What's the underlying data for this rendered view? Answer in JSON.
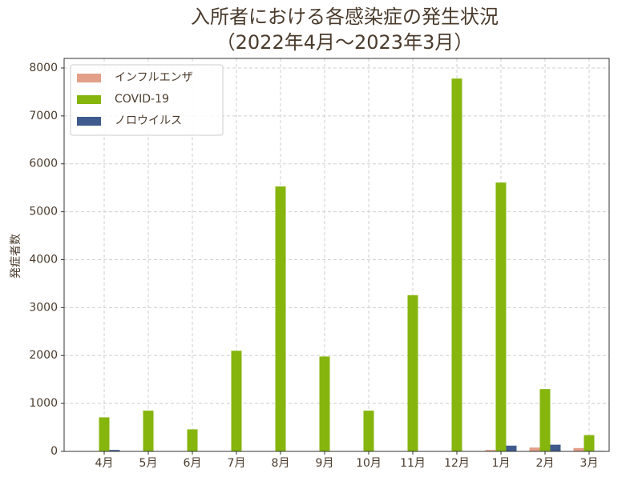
{
  "chart_data": {
    "type": "bar",
    "title": "入所者における各感染症の発生状況",
    "subtitle": "（2022年4月～2023年3月）",
    "y_label": "発症者数",
    "categories": [
      "4月",
      "5月",
      "6月",
      "7月",
      "8月",
      "9月",
      "10月",
      "11月",
      "12月",
      "1月",
      "2月",
      "3月"
    ],
    "series": [
      {
        "name": "インフルエンザ",
        "color": "#e3a088",
        "values": [
          0,
          0,
          0,
          0,
          0,
          0,
          0,
          0,
          0,
          30,
          80,
          70
        ]
      },
      {
        "name": "COVID-19",
        "color": "#86b50e",
        "values": [
          710,
          850,
          460,
          2100,
          5530,
          1980,
          850,
          3260,
          7780,
          5610,
          1300,
          340
        ]
      },
      {
        "name": "ノロウイルス",
        "color": "#3f5a8c",
        "values": [
          30,
          0,
          0,
          0,
          0,
          0,
          0,
          0,
          0,
          120,
          140,
          10
        ]
      }
    ],
    "ylim": [
      0,
      8200
    ],
    "yticks": [
      0,
      1000,
      2000,
      3000,
      4000,
      5000,
      6000,
      7000,
      8000
    ],
    "grid": true,
    "legend": "upper-left"
  }
}
